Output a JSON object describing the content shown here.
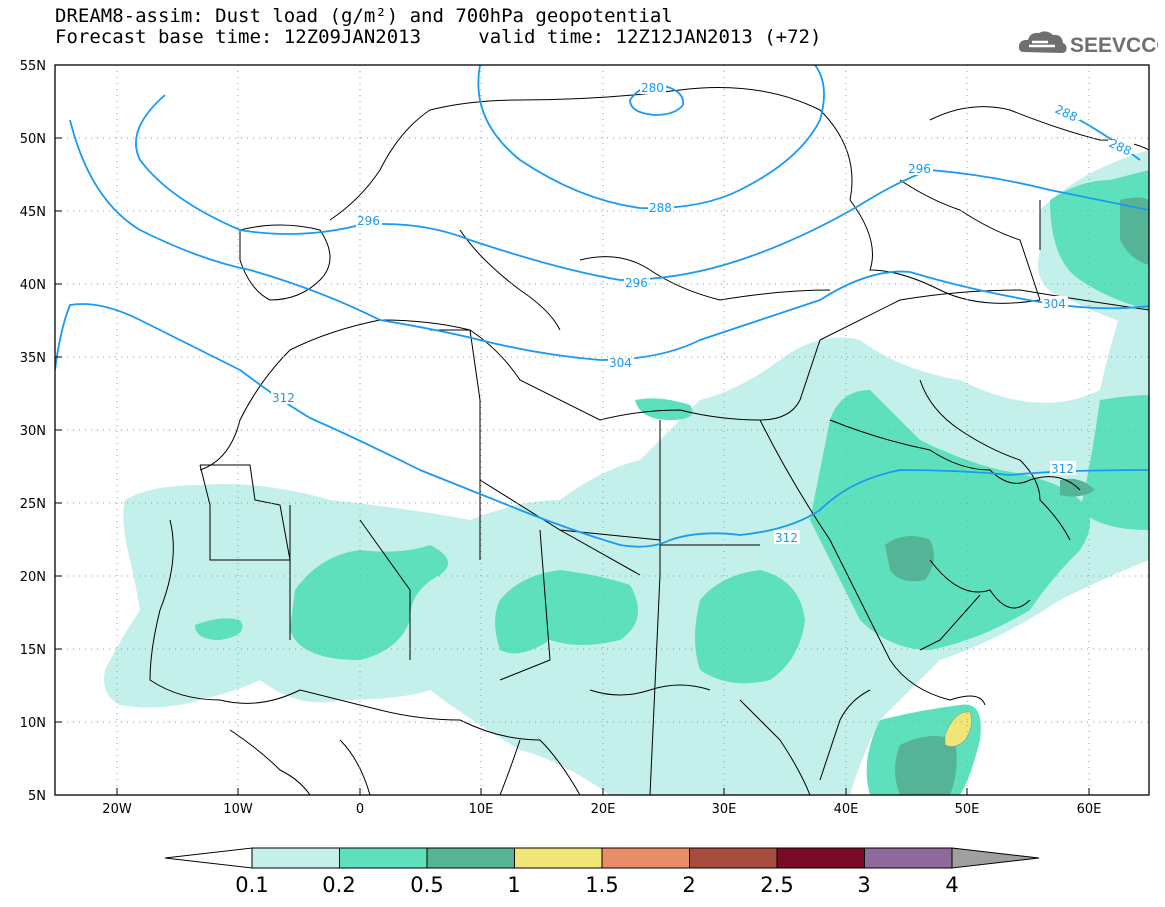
{
  "header": {
    "title": "DREAM8-assim: Dust load (g/m²) and 700hPa geopotential",
    "line2_left": "Forecast base time: 12Z09JAN2013",
    "line2_right": "valid time: 12Z12JAN2013 (+72)"
  },
  "logo": {
    "text": "SEEVCCC",
    "icon": "cloud-icon"
  },
  "map": {
    "lat_labels": [
      "55N",
      "50N",
      "45N",
      "40N",
      "35N",
      "30N",
      "25N",
      "20N",
      "15N",
      "10N",
      "5N"
    ],
    "lon_labels": [
      "20W",
      "10W",
      "0",
      "10E",
      "20E",
      "30E",
      "40E",
      "50E",
      "60E"
    ],
    "contour_labels": [
      "280",
      "288",
      "288",
      "288",
      "296",
      "296",
      "296",
      "304",
      "304",
      "312",
      "312",
      "312"
    ]
  },
  "legend": {
    "boundaries": [
      "0.1",
      "0.2",
      "0.5",
      "1",
      "1.5",
      "2",
      "2.5",
      "3",
      "4"
    ],
    "colors": [
      "#c3f0ea",
      "#5ee0bd",
      "#55b495",
      "#f0e678",
      "#ea8c69",
      "#a84c3d",
      "#7a0a25",
      "#8e6b9c",
      "#a0a0a0"
    ]
  },
  "colors": {
    "contour": "#1a9af0",
    "dust_light": "#c3f0ea",
    "dust_mid": "#5ee0bd",
    "dust_dark": "#55b495",
    "dust_yellow": "#f0e678"
  }
}
